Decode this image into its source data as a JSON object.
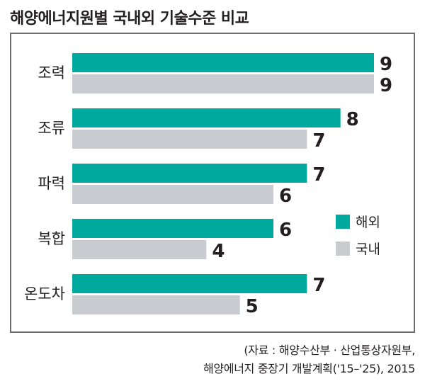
{
  "title": "해양에너지원별 국내외 기술수준 비교",
  "source_lines": [
    "(자료 : 해양수산부 · 산업통상자원부,",
    "해양에너지 중장기 개발계획('15–'25), 2015"
  ],
  "colors": {
    "overseas": "#00a99d",
    "domestic": "#c8ccd0",
    "text": "#231f20",
    "frame": "#6d6e71"
  },
  "chart_data": {
    "type": "bar",
    "orientation": "horizontal",
    "title": "해양에너지원별 국내외 기술수준 비교",
    "categories": [
      "조력",
      "조류",
      "파력",
      "복합",
      "온도차"
    ],
    "series": [
      {
        "name": "해외",
        "values": [
          9,
          8,
          7,
          6,
          7
        ]
      },
      {
        "name": "국내",
        "values": [
          9,
          7,
          6,
          4,
          5
        ]
      }
    ],
    "xlim": [
      0,
      9
    ],
    "legend_position": "right",
    "data_labels": true,
    "grid": false
  }
}
